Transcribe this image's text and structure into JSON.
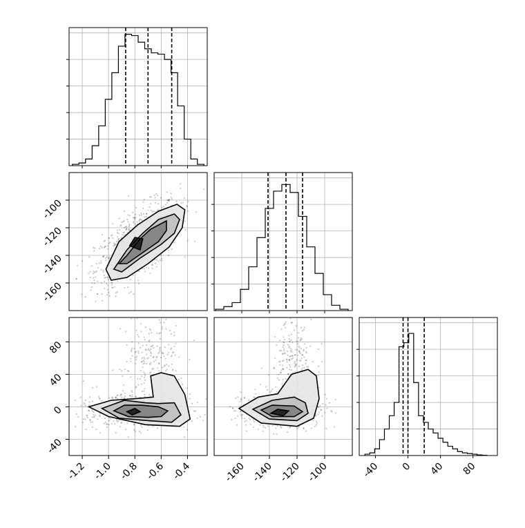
{
  "chart_data": [
    {
      "id": "hist-p1",
      "type": "histogram",
      "xlim": [
        -1.3,
        -0.25
      ],
      "bins_x": [
        -1.25,
        -1.2,
        -1.15,
        -1.1,
        -1.05,
        -1.0,
        -0.95,
        -0.9,
        -0.85,
        -0.8,
        -0.75,
        -0.7,
        -0.65,
        -0.6,
        -0.55,
        -0.5,
        -0.45,
        -0.4,
        -0.35,
        -0.3
      ],
      "counts": [
        0.01,
        0.02,
        0.05,
        0.15,
        0.3,
        0.5,
        0.7,
        0.9,
        0.99,
        0.98,
        0.93,
        0.88,
        0.85,
        0.84,
        0.8,
        0.7,
        0.45,
        0.2,
        0.05,
        0.01
      ],
      "quantile_lines": [
        -0.87,
        -0.7,
        -0.52
      ],
      "grid": true
    },
    {
      "id": "hist-p2",
      "type": "histogram",
      "xlim": [
        -180,
        -80
      ],
      "bins_x": [
        -176,
        -170,
        -164,
        -158,
        -152,
        -146,
        -140,
        -134,
        -128,
        -122,
        -116,
        -110,
        -104,
        -98,
        -92,
        -86
      ],
      "counts": [
        0.01,
        0.03,
        0.06,
        0.16,
        0.33,
        0.55,
        0.77,
        0.9,
        0.95,
        0.89,
        0.71,
        0.48,
        0.28,
        0.12,
        0.04,
        0.01
      ],
      "quantile_lines": [
        -141,
        -128,
        -116
      ],
      "grid": true
    },
    {
      "id": "hist-p3",
      "type": "histogram",
      "xlim": [
        -60,
        110
      ],
      "bins_x": [
        -50,
        -44,
        -38,
        -32,
        -26,
        -20,
        -14,
        -8,
        -2,
        4,
        10,
        16,
        22,
        28,
        34,
        40,
        46,
        52,
        58,
        64,
        70,
        76,
        82,
        88,
        94
      ],
      "counts": [
        0.01,
        0.02,
        0.05,
        0.12,
        0.2,
        0.3,
        0.4,
        0.82,
        0.85,
        0.92,
        0.55,
        0.3,
        0.25,
        0.2,
        0.17,
        0.13,
        0.1,
        0.07,
        0.05,
        0.03,
        0.02,
        0.015,
        0.01,
        0.005,
        0.002
      ],
      "quantile_lines": [
        -6,
        0,
        20
      ],
      "grid": true
    },
    {
      "id": "scatter-p2-vs-p1",
      "type": "scatter",
      "xlim": [
        -1.3,
        -0.25
      ],
      "ylim": [
        -180,
        -80
      ],
      "yticks": [
        "-100",
        "-120",
        "-140",
        "-160"
      ],
      "ytick_values": [
        -100,
        -120,
        -140,
        -160
      ],
      "center": [
        -0.78,
        -132
      ],
      "slope": 60,
      "spread": [
        0.16,
        12
      ],
      "contours": [
        [
          [
            -0.86,
            -140
          ],
          [
            -0.76,
            -128
          ],
          [
            -0.68,
            -121
          ],
          [
            -0.6,
            -117
          ],
          [
            -0.56,
            -115
          ],
          [
            -0.56,
            -122
          ],
          [
            -0.62,
            -130
          ],
          [
            -0.74,
            -138
          ],
          [
            -0.86,
            -146
          ],
          [
            -0.92,
            -146
          ]
        ],
        [
          [
            -0.96,
            -150
          ],
          [
            -0.86,
            -136
          ],
          [
            -0.74,
            -124
          ],
          [
            -0.62,
            -114
          ],
          [
            -0.5,
            -110
          ],
          [
            -0.46,
            -114
          ],
          [
            -0.5,
            -124
          ],
          [
            -0.6,
            -132
          ],
          [
            -0.76,
            -142
          ],
          [
            -0.9,
            -152
          ]
        ],
        [
          [
            -1.02,
            -150
          ],
          [
            -0.92,
            -130
          ],
          [
            -0.78,
            -118
          ],
          [
            -0.62,
            -108
          ],
          [
            -0.48,
            -103
          ],
          [
            -0.42,
            -107
          ],
          [
            -0.44,
            -120
          ],
          [
            -0.54,
            -134
          ],
          [
            -0.7,
            -146
          ],
          [
            -0.86,
            -156
          ],
          [
            -0.98,
            -158
          ]
        ],
        [
          [
            -0.84,
            -133
          ],
          [
            -0.8,
            -127
          ],
          [
            -0.74,
            -128
          ],
          [
            -0.76,
            -136
          ]
        ]
      ]
    },
    {
      "id": "scatter-p3-vs-p1",
      "type": "scatter",
      "xlim": [
        -1.3,
        -0.25
      ],
      "ylim": [
        -60,
        110
      ],
      "xticks": [
        "-1.2",
        "-1.0",
        "-0.8",
        "-0.6",
        "-0.4"
      ],
      "xtick_values": [
        -1.2,
        -1.0,
        -0.8,
        -0.6,
        -0.4
      ],
      "yticks": [
        "80",
        "40",
        "0",
        "-40"
      ],
      "ytick_values": [
        80,
        40,
        0,
        -40
      ],
      "center": [
        -0.78,
        -4
      ],
      "spread": [
        0.16,
        10
      ],
      "contours": [
        [
          [
            -0.96,
            -5
          ],
          [
            -0.85,
            -12
          ],
          [
            -0.7,
            -13
          ],
          [
            -0.6,
            -12
          ],
          [
            -0.55,
            -5
          ],
          [
            -0.62,
            0
          ],
          [
            -0.75,
            2
          ],
          [
            -0.88,
            2
          ]
        ],
        [
          [
            -1.05,
            -2
          ],
          [
            -0.92,
            -14
          ],
          [
            -0.7,
            -17
          ],
          [
            -0.52,
            -19
          ],
          [
            -0.45,
            -10
          ],
          [
            -0.5,
            5
          ],
          [
            -0.62,
            4
          ],
          [
            -0.72,
            5
          ],
          [
            -0.88,
            8
          ]
        ],
        [
          [
            -1.15,
            0
          ],
          [
            -1.0,
            -12
          ],
          [
            -0.72,
            -22
          ],
          [
            -0.46,
            -24
          ],
          [
            -0.38,
            -15
          ],
          [
            -0.42,
            15
          ],
          [
            -0.5,
            38
          ],
          [
            -0.6,
            42
          ],
          [
            -0.68,
            38
          ],
          [
            -0.66,
            12
          ],
          [
            -0.8,
            10
          ],
          [
            -0.98,
            8
          ]
        ],
        [
          [
            -0.86,
            -6
          ],
          [
            -0.8,
            -2
          ],
          [
            -0.76,
            -6
          ],
          [
            -0.82,
            -10
          ]
        ]
      ]
    },
    {
      "id": "scatter-p3-vs-p2",
      "type": "scatter",
      "xlim": [
        -180,
        -80
      ],
      "ylim": [
        -60,
        110
      ],
      "xticks": [
        "-160",
        "-140",
        "-120",
        "-100"
      ],
      "xtick_values": [
        -160,
        -140,
        -120,
        -100
      ],
      "center": [
        -132,
        -4
      ],
      "spread": [
        11,
        10
      ],
      "contours": [
        [
          [
            -146,
            -4
          ],
          [
            -138,
            -12
          ],
          [
            -122,
            -12
          ],
          [
            -116,
            -6
          ],
          [
            -122,
            1
          ],
          [
            -138,
            2
          ]
        ],
        [
          [
            -152,
            -3
          ],
          [
            -140,
            -15
          ],
          [
            -120,
            -17
          ],
          [
            -112,
            -8
          ],
          [
            -114,
            5
          ],
          [
            -122,
            12
          ],
          [
            -138,
            8
          ]
        ],
        [
          [
            -162,
            -2
          ],
          [
            -146,
            -20
          ],
          [
            -120,
            -24
          ],
          [
            -108,
            -14
          ],
          [
            -104,
            10
          ],
          [
            -106,
            38
          ],
          [
            -112,
            46
          ],
          [
            -124,
            40
          ],
          [
            -134,
            16
          ],
          [
            -148,
            12
          ]
        ],
        [
          [
            -139,
            -8
          ],
          [
            -134,
            -3
          ],
          [
            -126,
            -5
          ],
          [
            -130,
            -11
          ]
        ]
      ]
    }
  ]
}
